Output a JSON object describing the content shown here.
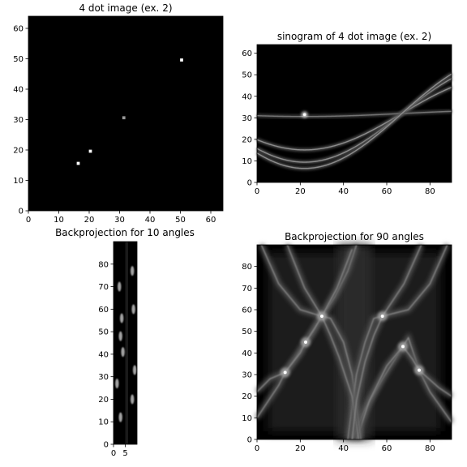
{
  "chart_data": [
    {
      "type": "heatmap",
      "title": "4 dot image (ex. 2)",
      "image_shape": [
        64,
        64
      ],
      "xlim": [
        0,
        64
      ],
      "ylim": [
        64,
        0
      ],
      "xticks": [
        0,
        10,
        20,
        30,
        40,
        50,
        60
      ],
      "yticks": [
        0,
        10,
        20,
        30,
        40,
        50,
        60
      ],
      "grid": false,
      "colormap": "gray",
      "background": "#000000",
      "points": [
        {
          "x": 16,
          "y": 16,
          "value": 1
        },
        {
          "x": 20,
          "y": 20,
          "value": 1
        },
        {
          "x": 31,
          "y": 31,
          "value": 0.6
        },
        {
          "x": 50,
          "y": 50,
          "value": 1
        }
      ]
    },
    {
      "type": "heatmap",
      "title": "sinogram of 4 dot image (ex. 2)",
      "image_shape": [
        64,
        90
      ],
      "xlim": [
        0,
        90
      ],
      "ylim": [
        64,
        0
      ],
      "xticks": [
        0,
        20,
        40,
        60,
        80
      ],
      "yticks": [
        0,
        10,
        20,
        30,
        40,
        50,
        60
      ],
      "grid": false,
      "colormap": "gray",
      "background": "#000000",
      "curves": [
        {
          "center": 32,
          "amplitude": 22.6,
          "phase_deg": 22,
          "intensity": 0.55
        },
        {
          "center": 32,
          "amplitude": 16.9,
          "phase_deg": 22,
          "intensity": 0.55
        },
        {
          "center": 32,
          "amplitude": 1.4,
          "phase_deg": 22,
          "intensity": 0.45
        },
        {
          "center": 32,
          "amplitude": 25.5,
          "phase_deg": 22,
          "intensity": 0.55
        }
      ],
      "bright_spot": {
        "x": 22,
        "y": 31.5
      }
    },
    {
      "type": "heatmap",
      "title": "Backprojection for 10 angles",
      "image_shape": [
        90,
        10
      ],
      "xlim": [
        0,
        10
      ],
      "ylim": [
        90,
        0
      ],
      "xticks": [
        0,
        5
      ],
      "yticks": [
        0,
        10,
        20,
        30,
        40,
        50,
        60,
        70,
        80
      ],
      "grid": false,
      "colormap": "gray",
      "background": "#000000",
      "bright_spots": [
        {
          "x": 3,
          "y": 12
        },
        {
          "x": 8,
          "y": 20
        },
        {
          "x": 1.5,
          "y": 27
        },
        {
          "x": 9,
          "y": 33
        },
        {
          "x": 4,
          "y": 41
        },
        {
          "x": 3,
          "y": 48
        },
        {
          "x": 3.5,
          "y": 56
        },
        {
          "x": 8.5,
          "y": 60
        },
        {
          "x": 2.5,
          "y": 70
        },
        {
          "x": 8,
          "y": 77
        }
      ]
    },
    {
      "type": "heatmap",
      "title": "Backprojection for 90 angles",
      "image_shape": [
        90,
        90
      ],
      "xlim": [
        0,
        90
      ],
      "ylim": [
        90,
        0
      ],
      "xticks": [
        0,
        20,
        40,
        60,
        80
      ],
      "yticks": [
        0,
        10,
        20,
        30,
        40,
        50,
        60,
        70,
        80
      ],
      "grid": false,
      "colormap": "gray",
      "background": "#000000",
      "bright_spots": [
        {
          "x": 13,
          "y": 31
        },
        {
          "x": 22.5,
          "y": 45
        },
        {
          "x": 30,
          "y": 57
        },
        {
          "x": 58,
          "y": 57
        },
        {
          "x": 67.5,
          "y": 43
        },
        {
          "x": 75,
          "y": 32
        }
      ]
    }
  ]
}
